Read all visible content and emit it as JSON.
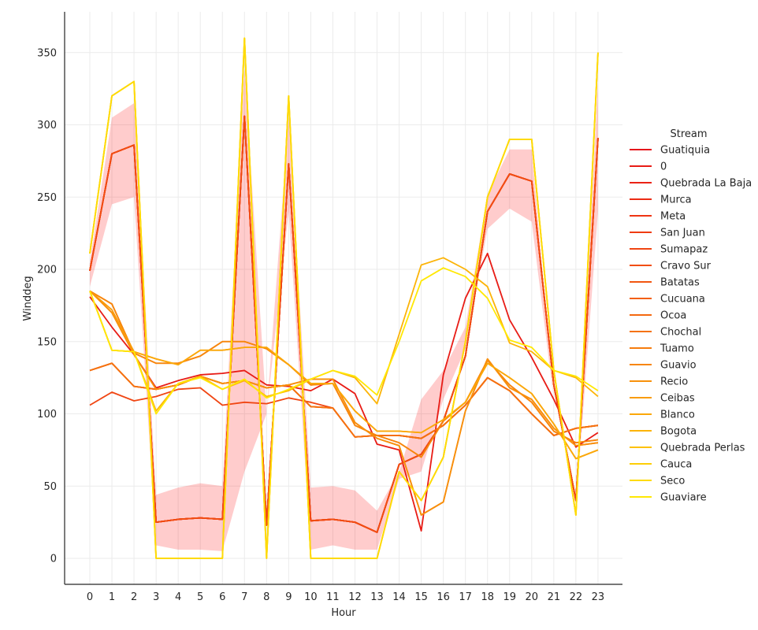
{
  "chart_data": {
    "type": "line",
    "xlabel": "Hour",
    "ylabel": "Winddeg",
    "x": [
      0,
      1,
      2,
      3,
      4,
      5,
      6,
      7,
      8,
      9,
      10,
      11,
      12,
      13,
      14,
      15,
      16,
      17,
      18,
      19,
      20,
      21,
      22,
      23
    ],
    "xlim": [
      -1.2,
      24.2
    ],
    "ylim": [
      -18,
      378
    ],
    "yticks": [
      0,
      50,
      100,
      150,
      200,
      250,
      300,
      350
    ],
    "grid": true,
    "legend": {
      "title": "Stream",
      "placement": "right"
    },
    "confidence_band": {
      "color": "#ff0000",
      "opacity": 0.2,
      "lower": [
        188,
        245,
        250,
        9,
        6,
        6,
        5,
        60,
        100,
        240,
        6,
        9,
        6,
        6,
        55,
        60,
        110,
        145,
        228,
        242,
        233,
        110,
        35,
        240
      ],
      "upper": [
        205,
        305,
        315,
        44,
        49,
        52,
        50,
        340,
        100,
        305,
        49,
        50,
        47,
        33,
        60,
        110,
        130,
        160,
        252,
        283,
        283,
        110,
        35,
        330
      ]
    },
    "series": [
      {
        "name": "Guatiquia",
        "color": "#e5161b",
        "values": [
          199,
          280,
          286,
          25,
          27,
          28,
          27,
          306,
          23,
          273,
          26,
          27,
          25,
          18,
          65,
          72,
          95,
          140,
          240,
          266,
          261,
          120,
          40,
          291
        ]
      },
      {
        "name": "0",
        "color": "#e81c16",
        "values": [
          181,
          160,
          141,
          118,
          123,
          127,
          128,
          130,
          120,
          119,
          116,
          124,
          114,
          79,
          75,
          19,
          127,
          180,
          211,
          165,
          139,
          110,
          77,
          87
        ]
      },
      {
        "name": "Quebrada La Baja",
        "color": "#ea2315",
        "values": [
          199,
          280,
          286,
          25,
          27,
          28,
          27,
          306,
          23,
          273,
          26,
          27,
          25,
          18,
          65,
          72,
          95,
          140,
          240,
          266,
          261,
          120,
          40,
          291
        ]
      },
      {
        "name": "Murca",
        "color": "#ec2b14",
        "values": [
          199,
          280,
          286,
          25,
          27,
          28,
          27,
          306,
          23,
          273,
          26,
          27,
          25,
          18,
          65,
          72,
          95,
          140,
          240,
          266,
          261,
          120,
          40,
          291
        ]
      },
      {
        "name": "Meta",
        "color": "#ee3413",
        "values": [
          199,
          280,
          286,
          25,
          27,
          28,
          27,
          306,
          23,
          273,
          26,
          27,
          25,
          18,
          65,
          72,
          95,
          140,
          240,
          266,
          261,
          120,
          40,
          291
        ]
      },
      {
        "name": "San Juan",
        "color": "#ef3c12",
        "values": [
          199,
          280,
          286,
          25,
          27,
          28,
          27,
          306,
          23,
          273,
          26,
          27,
          25,
          18,
          65,
          72,
          95,
          140,
          240,
          266,
          261,
          120,
          40,
          291
        ]
      },
      {
        "name": "Sumapaz",
        "color": "#f04512",
        "values": [
          106,
          115,
          109,
          112,
          117,
          118,
          106,
          108,
          107,
          111,
          108,
          104,
          84,
          85,
          85,
          83,
          92,
          106,
          125,
          116,
          100,
          85,
          90,
          92
        ]
      },
      {
        "name": "Cravo Sur",
        "color": "#f14e11",
        "values": [
          199,
          280,
          286,
          25,
          27,
          28,
          27,
          306,
          23,
          273,
          26,
          27,
          25,
          18,
          65,
          72,
          95,
          140,
          240,
          266,
          261,
          120,
          40,
          291
        ]
      },
      {
        "name": "Batatas",
        "color": "#f25610",
        "values": [
          130,
          135,
          119,
          117,
          120,
          126,
          121,
          123,
          118,
          120,
          105,
          104,
          84,
          85,
          85,
          83,
          92,
          106,
          125,
          116,
          100,
          85,
          90,
          92
        ]
      },
      {
        "name": "Cucuana",
        "color": "#f35f10",
        "values": [
          130,
          135,
          119,
          117,
          120,
          126,
          121,
          123,
          118,
          120,
          105,
          104,
          84,
          85,
          85,
          83,
          92,
          106,
          125,
          116,
          100,
          85,
          90,
          92
        ]
      },
      {
        "name": "Ocoa",
        "color": "#f4680f",
        "values": [
          185,
          170,
          141,
          117,
          120,
          126,
          121,
          123,
          118,
          120,
          124,
          124,
          94,
          83,
          78,
          30,
          39,
          102,
          138,
          118,
          110,
          90,
          78,
          80
        ]
      },
      {
        "name": "Chochal",
        "color": "#f5720e",
        "values": [
          130,
          135,
          119,
          117,
          120,
          126,
          121,
          123,
          118,
          120,
          105,
          104,
          84,
          85,
          85,
          83,
          92,
          106,
          125,
          116,
          100,
          85,
          90,
          92
        ]
      },
      {
        "name": "Tuamo",
        "color": "#f67c0d",
        "values": [
          185,
          176,
          142,
          135,
          135,
          140,
          150,
          150,
          145,
          134,
          120,
          121,
          92,
          85,
          80,
          70,
          95,
          108,
          137,
          120,
          108,
          88,
          80,
          82
        ]
      },
      {
        "name": "Guavio",
        "color": "#f7860c",
        "values": [
          185,
          176,
          142,
          135,
          135,
          140,
          150,
          150,
          145,
          134,
          120,
          121,
          92,
          85,
          80,
          70,
          95,
          108,
          137,
          120,
          108,
          88,
          80,
          82
        ]
      },
      {
        "name": "Recio",
        "color": "#f8910b",
        "values": [
          185,
          170,
          141,
          117,
          120,
          126,
          121,
          123,
          118,
          120,
          124,
          124,
          94,
          83,
          78,
          30,
          39,
          102,
          138,
          118,
          110,
          90,
          78,
          80
        ]
      },
      {
        "name": "Ceibas",
        "color": "#f99c0a",
        "values": [
          185,
          172,
          143,
          138,
          134,
          144,
          144,
          146,
          146,
          134,
          121,
          121,
          102,
          88,
          88,
          87,
          96,
          108,
          135,
          125,
          114,
          93,
          69,
          75
        ]
      },
      {
        "name": "Blanco",
        "color": "#fba809",
        "values": [
          185,
          144,
          143,
          138,
          134,
          144,
          144,
          146,
          146,
          134,
          121,
          121,
          102,
          88,
          88,
          87,
          96,
          108,
          135,
          125,
          114,
          93,
          69,
          75
        ]
      },
      {
        "name": "Bogota",
        "color": "#fcb408",
        "values": [
          185,
          144,
          143,
          102,
          121,
          126,
          117,
          123,
          112,
          116,
          124,
          130,
          125,
          107,
          155,
          203,
          208,
          200,
          188,
          149,
          143,
          130,
          125,
          112
        ]
      },
      {
        "name": "Quebrada Perlas",
        "color": "#fdc107",
        "values": [
          211,
          320,
          330,
          0,
          0,
          0,
          0,
          360,
          0,
          320,
          0,
          0,
          0,
          0,
          60,
          40,
          70,
          150,
          250,
          290,
          290,
          130,
          30,
          350
        ]
      },
      {
        "name": "Cauca",
        "color": "#fdcd06",
        "values": [
          211,
          320,
          330,
          0,
          0,
          0,
          0,
          360,
          0,
          320,
          0,
          0,
          0,
          0,
          60,
          40,
          70,
          150,
          250,
          290,
          290,
          130,
          30,
          350
        ]
      },
      {
        "name": "Seco",
        "color": "#fedb05",
        "values": [
          211,
          320,
          330,
          0,
          0,
          0,
          0,
          360,
          0,
          320,
          0,
          0,
          0,
          0,
          60,
          40,
          70,
          150,
          250,
          290,
          290,
          130,
          30,
          350
        ]
      },
      {
        "name": "Guaviare",
        "color": "#ffe804",
        "values": [
          185,
          144,
          143,
          100,
          121,
          125,
          117,
          124,
          111,
          117,
          124,
          130,
          126,
          113,
          150,
          192,
          201,
          195,
          180,
          151,
          146,
          130,
          126,
          116
        ]
      }
    ]
  }
}
